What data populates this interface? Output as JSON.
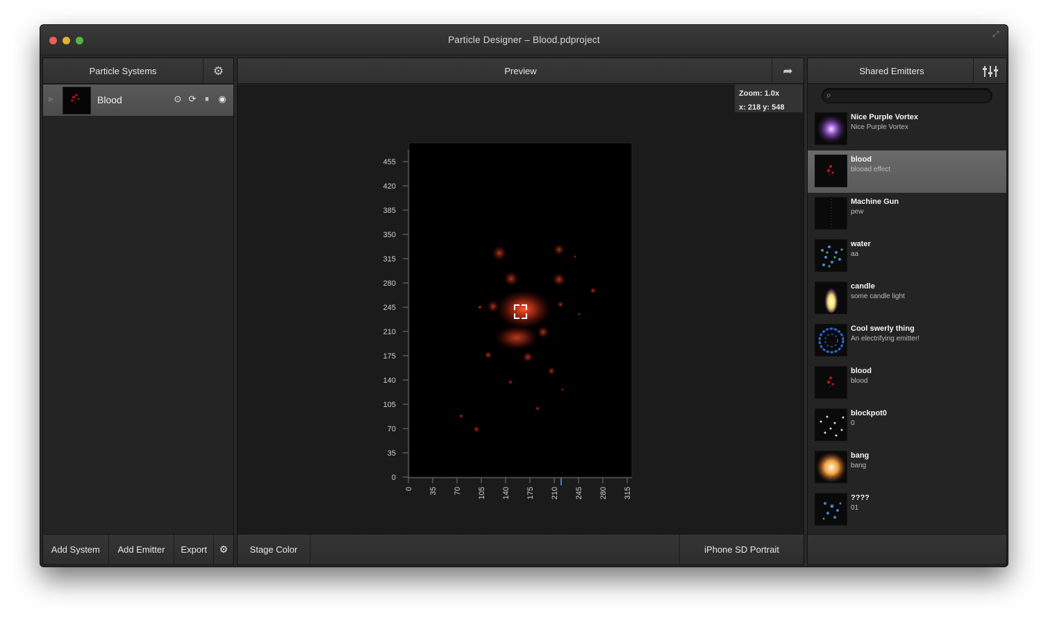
{
  "window": {
    "title": "Particle Designer – Blood.pdproject"
  },
  "left_panel": {
    "header": "Particle Systems",
    "systems": [
      {
        "name": "Blood"
      }
    ],
    "footer": {
      "add_system": "Add System",
      "add_emitter": "Add Emitter",
      "export": "Export"
    }
  },
  "center_panel": {
    "header": "Preview",
    "zoom": "Zoom: 1.0x",
    "coords": "x: 218 y: 548",
    "footer": {
      "stage_color": "Stage Color",
      "device": "iPhone SD Portrait"
    },
    "rulers": {
      "y_ticks": [
        "455",
        "420",
        "385",
        "350",
        "315",
        "280",
        "245",
        "210",
        "175",
        "140",
        "105",
        "70",
        "35",
        "0"
      ],
      "x_ticks": [
        "0",
        "35",
        "70",
        "105",
        "140",
        "175",
        "210",
        "245",
        "280",
        "315"
      ]
    }
  },
  "right_panel": {
    "header": "Shared Emitters",
    "search_placeholder": "",
    "emitters": [
      {
        "name": "Nice Purple Vortex",
        "desc": "Nice Purple Vortex"
      },
      {
        "name": "blood",
        "desc": "blooad effect"
      },
      {
        "name": "Machine Gun",
        "desc": "pew"
      },
      {
        "name": "water",
        "desc": "aa"
      },
      {
        "name": "candle",
        "desc": "some candle light"
      },
      {
        "name": "Cool swerly thing",
        "desc": "An electrifying emitter!"
      },
      {
        "name": "blood",
        "desc": "blood"
      },
      {
        "name": "blockpot0",
        "desc": "0"
      },
      {
        "name": "bang",
        "desc": "bang"
      },
      {
        "name": "????",
        "desc": "01"
      }
    ]
  }
}
